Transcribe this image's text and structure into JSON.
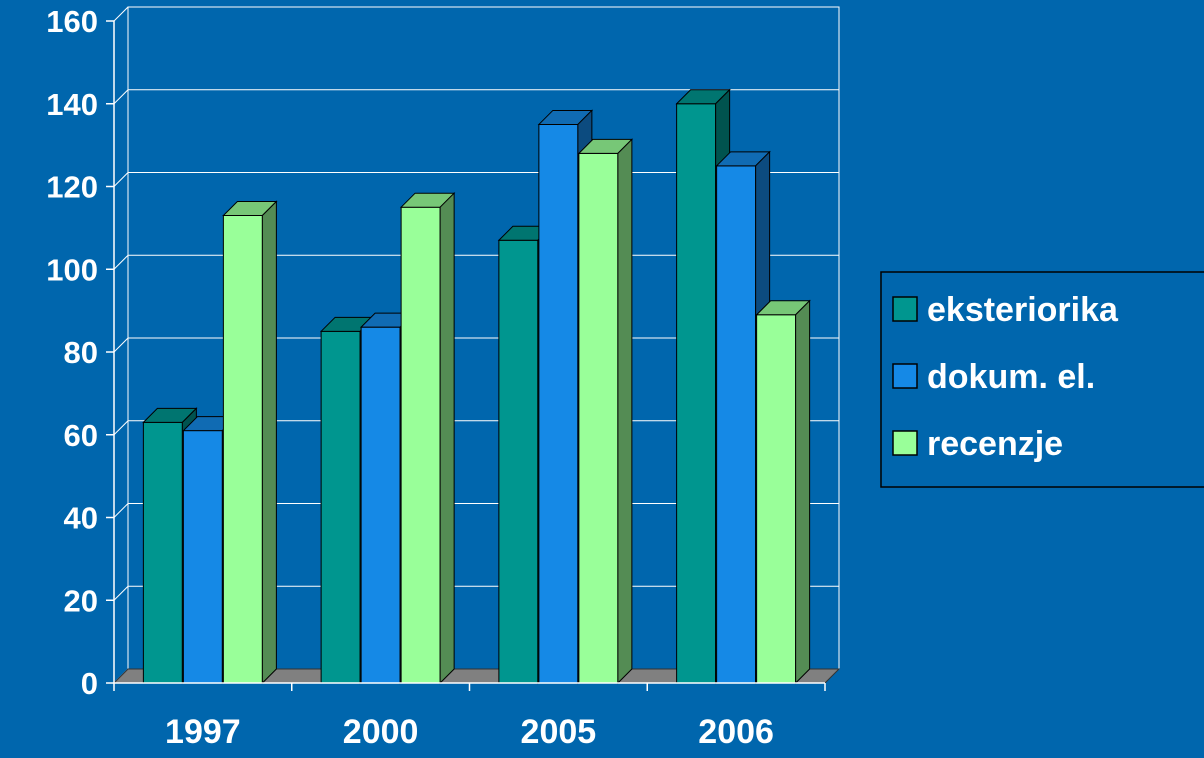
{
  "chart_data": {
    "type": "bar",
    "categories": [
      "1997",
      "2000",
      "2005",
      "2006"
    ],
    "series": [
      {
        "name": "eksteriorika",
        "values": [
          63,
          85,
          107,
          140
        ],
        "color": "#00968f"
      },
      {
        "name": "dokum. el.",
        "values": [
          61,
          86,
          135,
          125
        ],
        "color": "#1589e6"
      },
      {
        "name": "recenzje",
        "values": [
          113,
          115,
          128,
          89
        ],
        "color": "#99ff99"
      }
    ],
    "yticks": [
      "0",
      "20",
      "40",
      "60",
      "80",
      "100",
      "120",
      "140",
      "160"
    ],
    "ylim": [
      0,
      160
    ],
    "grid": true,
    "legend_position": "right",
    "style": "3d-clustered-column",
    "colors": {
      "background": "#0066ad",
      "text": "#ffffff",
      "grid": "#ffffff",
      "floor": "#808080"
    }
  }
}
